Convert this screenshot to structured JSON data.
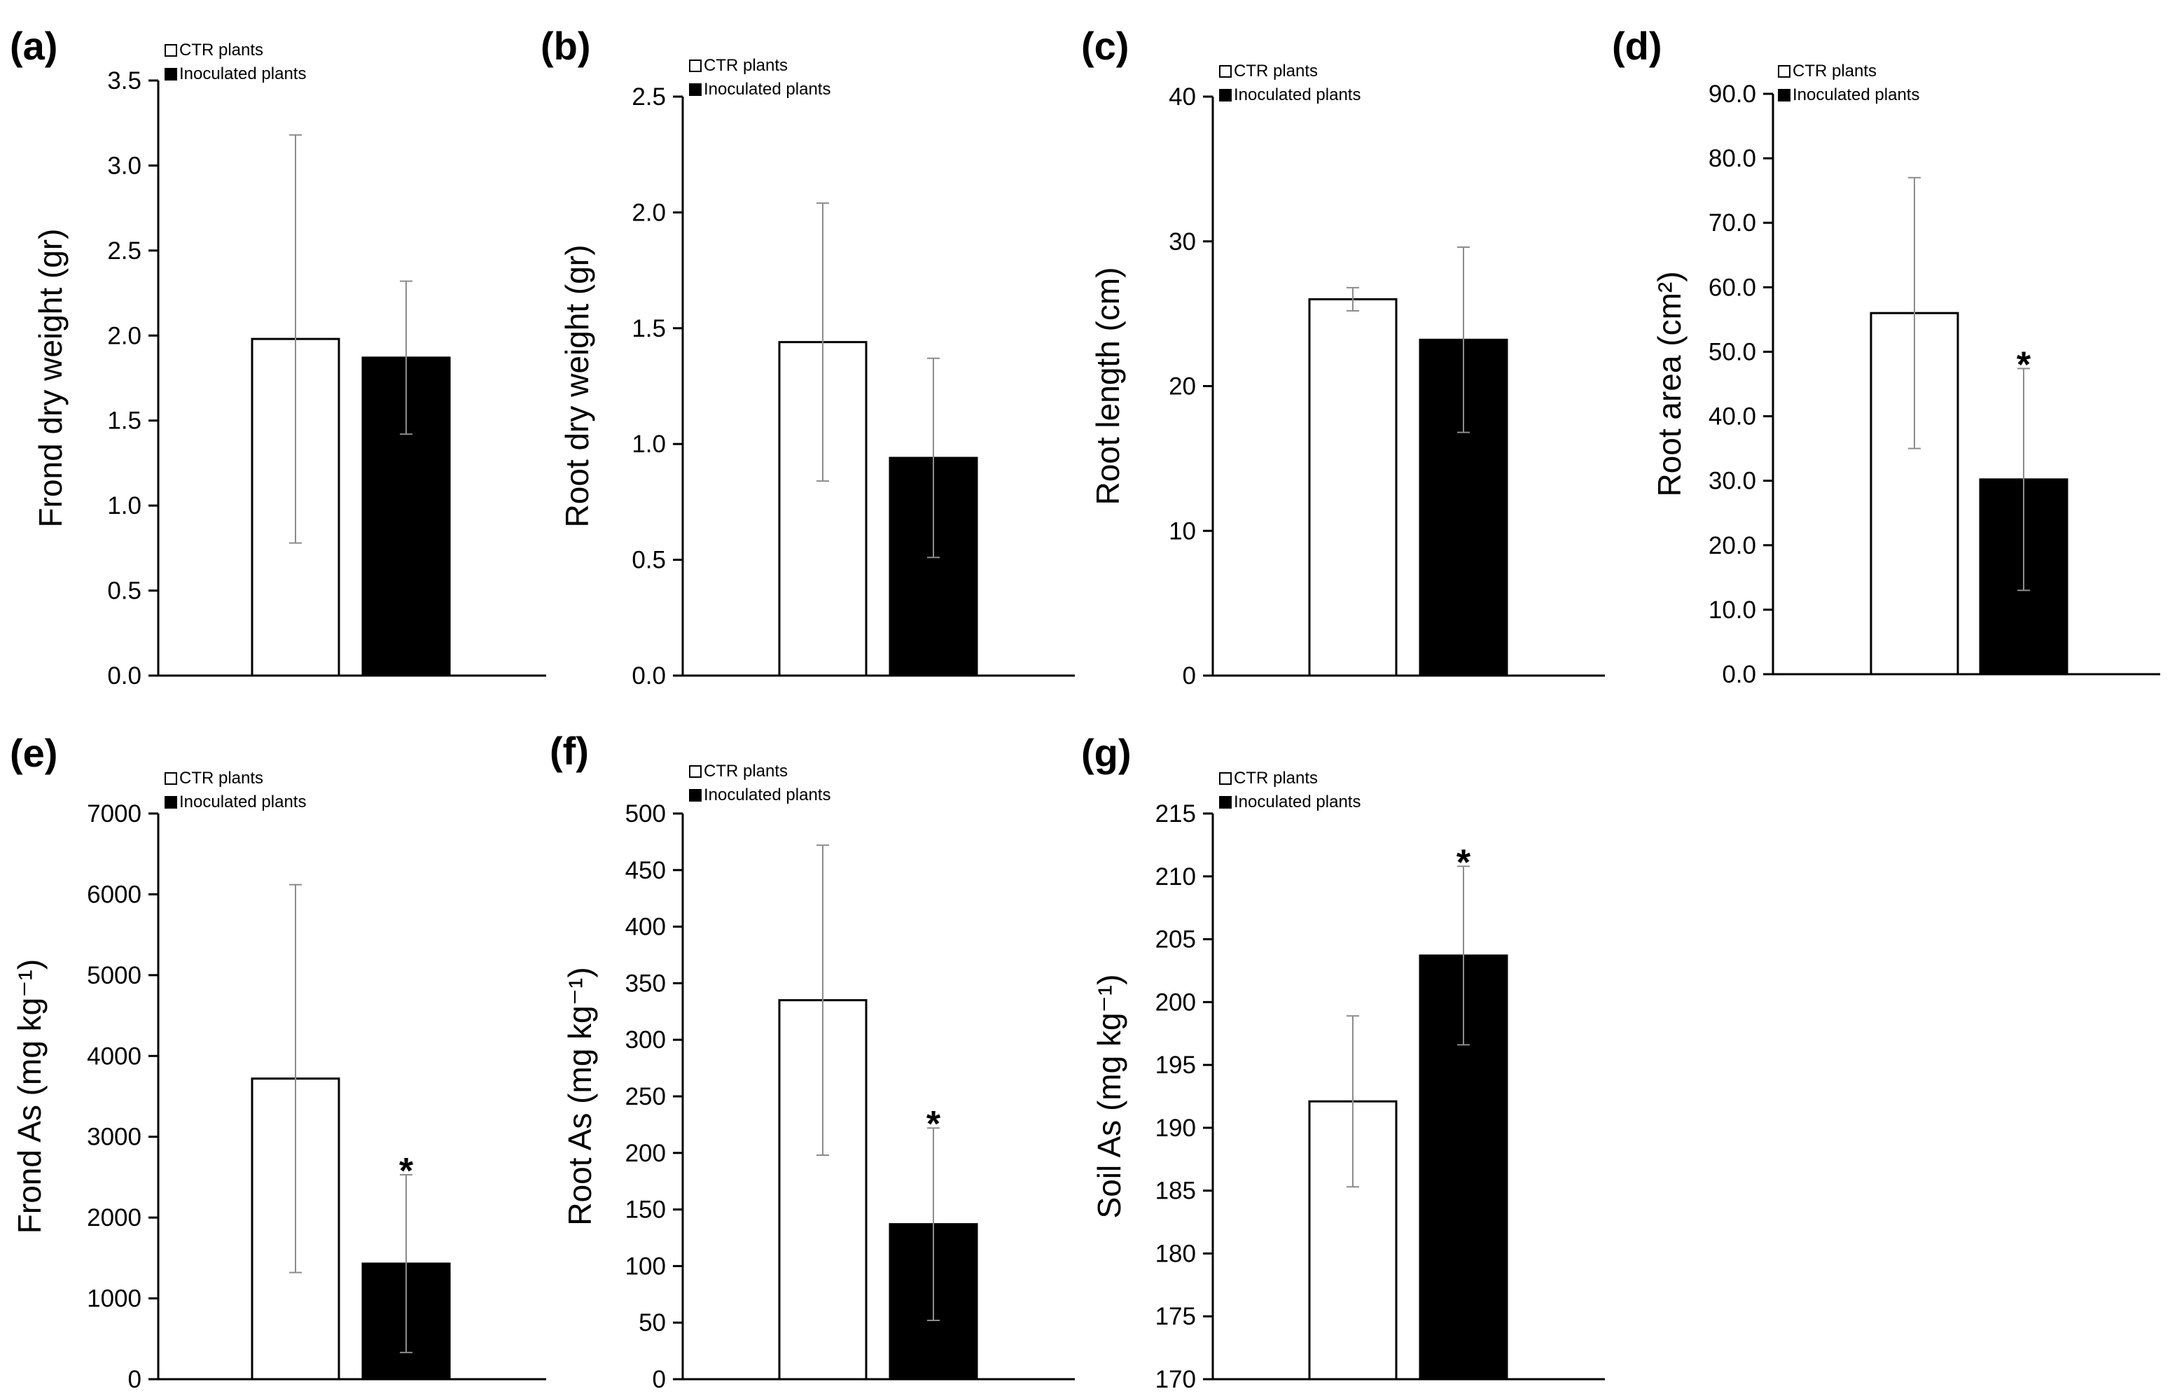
{
  "legend": {
    "ctr": "CTR plants",
    "inoculated": "Inoculated plants"
  },
  "colors": {
    "ctr": "#ffffff",
    "inoculated": "#000000",
    "axis": "#000000",
    "errorbar": "#8c8c8c"
  },
  "chart_data": [
    {
      "id": "a",
      "panel_label": "(a)",
      "type": "bar",
      "ylabel": "Frond dry weight (gr)",
      "ylim": [
        0,
        3.5
      ],
      "ytick_step": 0.5,
      "decimals": 1,
      "categories": [
        "CTR plants",
        "Inoculated plants"
      ],
      "values": [
        1.98,
        1.87
      ],
      "errors": [
        1.2,
        0.45
      ],
      "significant": [
        false,
        false
      ]
    },
    {
      "id": "b",
      "panel_label": "(b)",
      "type": "bar",
      "ylabel": "Root dry weight (gr)",
      "ylim": [
        0,
        2.5
      ],
      "ytick_step": 0.5,
      "decimals": 1,
      "categories": [
        "CTR plants",
        "Inoculated plants"
      ],
      "values": [
        1.44,
        0.94
      ],
      "errors": [
        0.6,
        0.43
      ],
      "significant": [
        false,
        false
      ]
    },
    {
      "id": "c",
      "panel_label": "(c)",
      "type": "bar",
      "ylabel": "Root length (cm)",
      "ylim": [
        0,
        40
      ],
      "ytick_step": 10,
      "decimals": 0,
      "categories": [
        "CTR plants",
        "Inoculated plants"
      ],
      "values": [
        26,
        23.2
      ],
      "errors": [
        0.8,
        6.4
      ],
      "significant": [
        false,
        false
      ]
    },
    {
      "id": "d",
      "panel_label": "(d)",
      "type": "bar",
      "ylabel": "Root area (cm²)",
      "ylim": [
        0,
        90
      ],
      "ytick_step": 10,
      "decimals": 1,
      "categories": [
        "CTR plants",
        "Inoculated plants"
      ],
      "values": [
        56,
        30.2
      ],
      "errors": [
        21,
        17.2
      ],
      "significant": [
        false,
        true
      ]
    },
    {
      "id": "e",
      "panel_label": "(e)",
      "type": "bar",
      "ylabel": "Frond As (mg kg⁻¹)",
      "ylim": [
        0,
        7000
      ],
      "ytick_step": 1000,
      "decimals": 0,
      "categories": [
        "CTR plants",
        "Inoculated plants"
      ],
      "values": [
        3720,
        1430
      ],
      "errors": [
        2400,
        1100
      ],
      "significant": [
        false,
        true
      ]
    },
    {
      "id": "f",
      "panel_label": "(f)",
      "type": "bar",
      "ylabel": "Root As (mg kg⁻¹)",
      "ylim": [
        0,
        500
      ],
      "ytick_step": 50,
      "decimals": 0,
      "categories": [
        "CTR plants",
        "Inoculated plants"
      ],
      "values": [
        335,
        137
      ],
      "errors": [
        137,
        85
      ],
      "significant": [
        false,
        true
      ]
    },
    {
      "id": "g",
      "panel_label": "(g)",
      "type": "bar",
      "ylabel": "Soil As (mg kg⁻¹)",
      "ylim": [
        170,
        215
      ],
      "ytick_step": 5,
      "decimals": 0,
      "categories": [
        "CTR plants",
        "Inoculated plants"
      ],
      "values": [
        192.1,
        203.7
      ],
      "errors": [
        6.8,
        7.1
      ],
      "significant": [
        false,
        true
      ]
    }
  ],
  "significance_marker": "*"
}
